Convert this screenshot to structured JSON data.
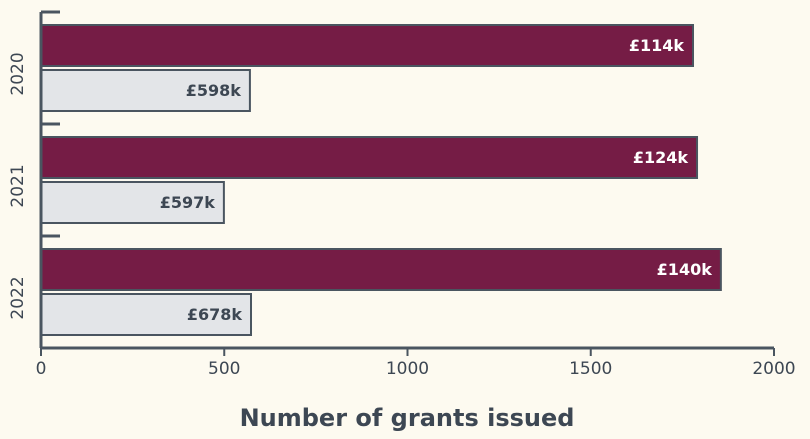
{
  "chart_data": {
    "type": "bar",
    "orientation": "horizontal",
    "categories": [
      "2020",
      "2021",
      "2022"
    ],
    "series": [
      {
        "color": "#751c45",
        "values": [
          1779,
          1790,
          1855
        ],
        "bar_labels": [
          "£114k",
          "£124k",
          "£140k"
        ]
      },
      {
        "color": "#e3e5e8",
        "values": [
          570,
          499,
          573
        ],
        "bar_labels": [
          "£598k",
          "£597k",
          "£678k"
        ]
      }
    ],
    "x_label": "Number of grants issued",
    "xlim": [
      0,
      2000
    ],
    "xticks": [
      0,
      500,
      1000,
      1500,
      2000
    ]
  }
}
